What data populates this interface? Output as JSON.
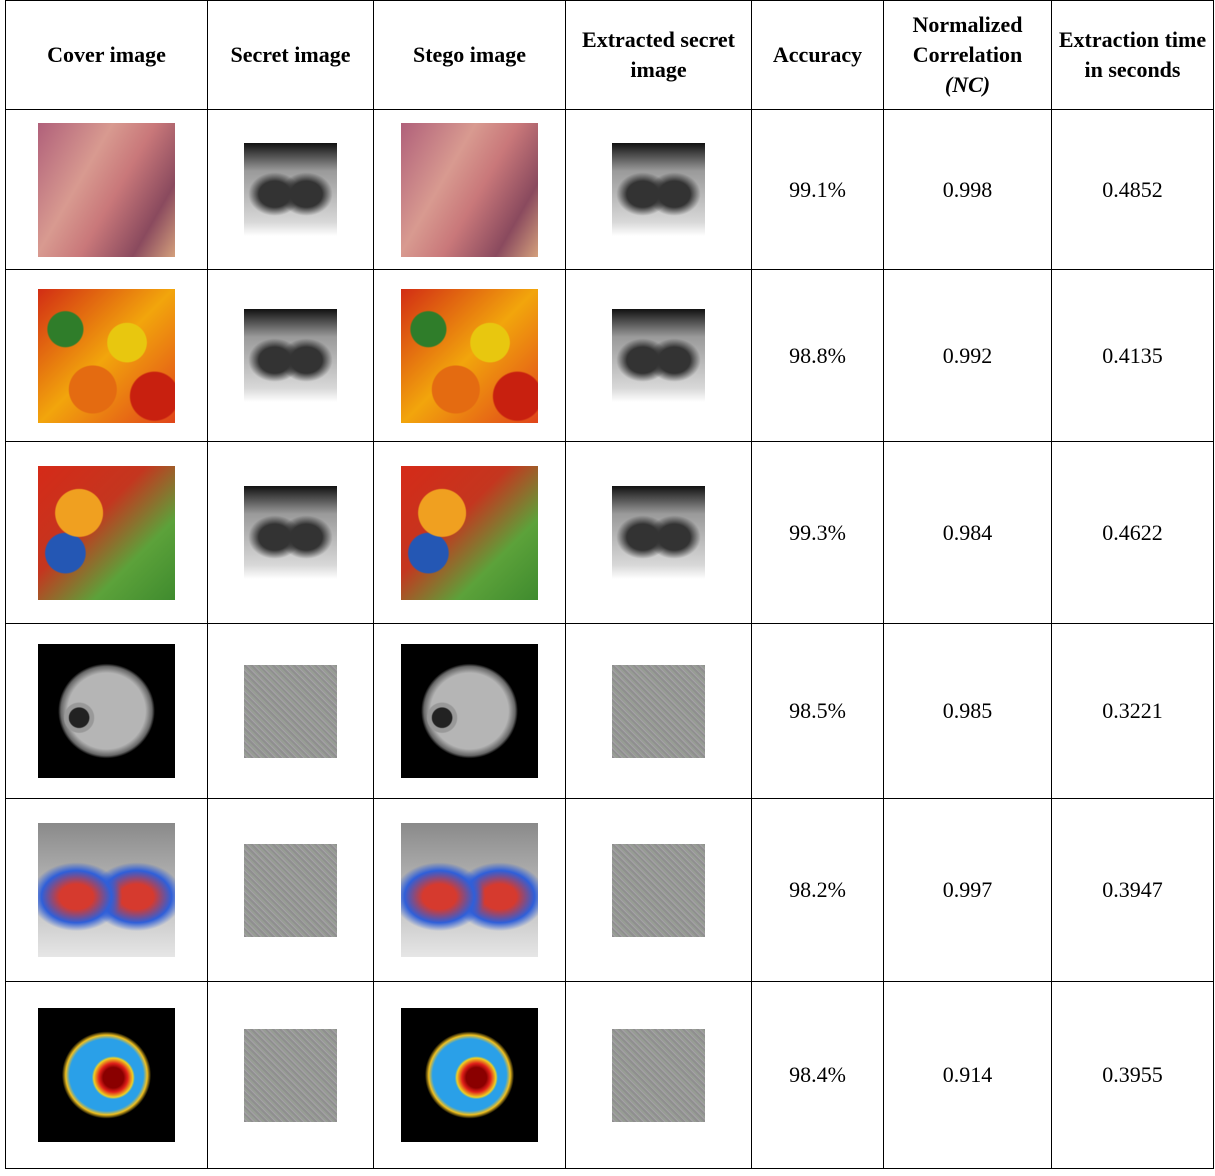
{
  "table": {
    "headers": [
      "Cover image",
      "Secret image",
      "Stego image",
      "Extracted secret image",
      "Accuracy",
      "Normalized Correlation",
      "Extraction time in seconds"
    ],
    "nc_abbrev": "(NC)",
    "rows": [
      [
        "99.1%",
        "0.998",
        "0.4852"
      ],
      [
        "98.8%",
        "0.992",
        "0.4135"
      ],
      [
        "99.3%",
        "0.984",
        "0.4622"
      ],
      [
        "98.5%",
        "0.985",
        "0.3221"
      ],
      [
        "98.2%",
        "0.997",
        "0.3947"
      ],
      [
        "98.4%",
        "0.914",
        "0.3955"
      ]
    ]
  }
}
